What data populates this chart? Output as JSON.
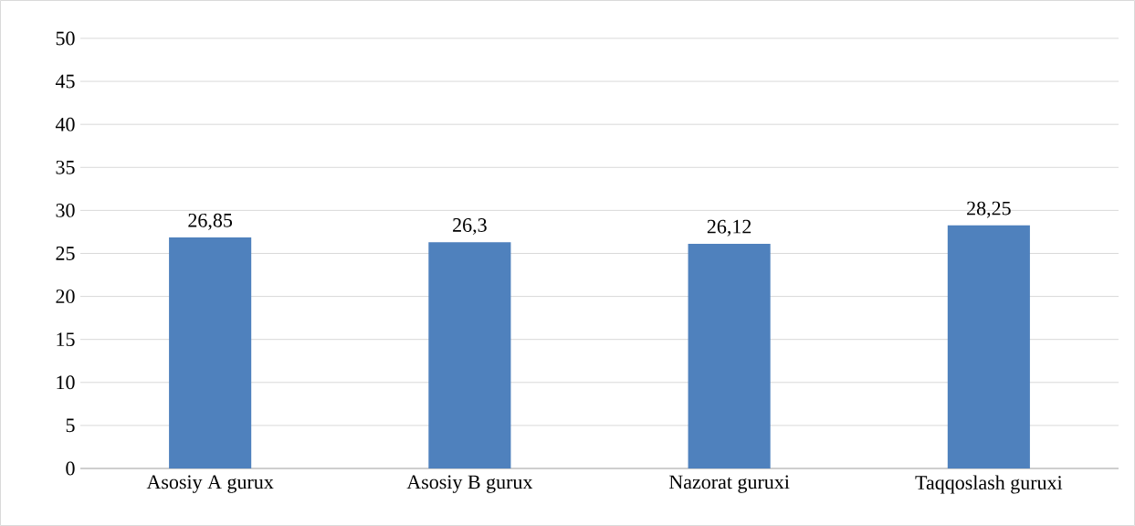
{
  "chart_data": {
    "type": "bar",
    "categories": [
      "Asosiy A gurux",
      "Asosiy B gurux",
      "Nazorat guruxi",
      "Taqqoslash guruxi"
    ],
    "values": [
      26.85,
      26.3,
      26.12,
      28.25
    ],
    "value_labels": [
      "26,85",
      "26,3",
      "26,12",
      "28,25"
    ],
    "color": "#4f81bd",
    "ylim": [
      0,
      50
    ],
    "yticks": [
      0,
      5,
      10,
      15,
      20,
      25,
      30,
      35,
      40,
      45,
      50
    ],
    "grid": "y"
  }
}
